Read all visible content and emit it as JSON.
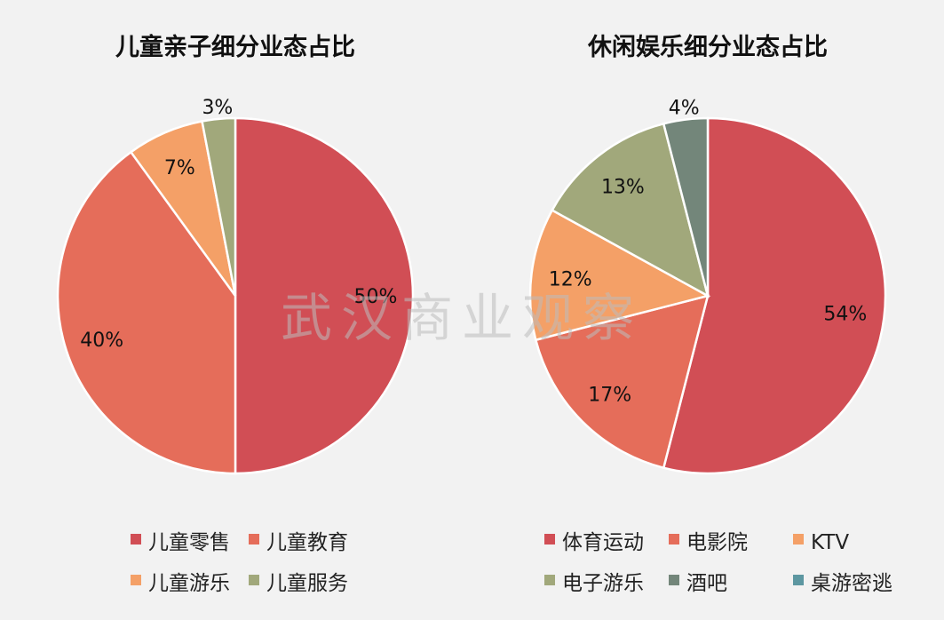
{
  "watermark": "武汉商业观察",
  "chart_data": [
    {
      "type": "pie",
      "title": "儿童亲子细分业态占比",
      "categories": [
        "儿童零售",
        "儿童教育",
        "儿童游乐",
        "儿童服务"
      ],
      "values": [
        50,
        40,
        7,
        3
      ],
      "labels": [
        "50%",
        "40%",
        "7%",
        "3%"
      ],
      "colors": [
        "#d14e55",
        "#e56d5a",
        "#f4a067",
        "#a1a87b"
      ],
      "legend": "bottom"
    },
    {
      "type": "pie",
      "title": "休闲娱乐细分业态占比",
      "categories": [
        "体育运动",
        "电影院",
        "KTV",
        "电子游乐",
        "酒吧",
        "桌游密逃"
      ],
      "values": [
        54,
        17,
        12,
        13,
        4,
        0
      ],
      "labels": [
        "54%",
        "17%",
        "12%",
        "13%",
        "4%",
        ""
      ],
      "colors": [
        "#d14e55",
        "#e56d5a",
        "#f4a067",
        "#a1a87b",
        "#73867a",
        "#5d97a1"
      ],
      "legend": "bottom"
    }
  ]
}
